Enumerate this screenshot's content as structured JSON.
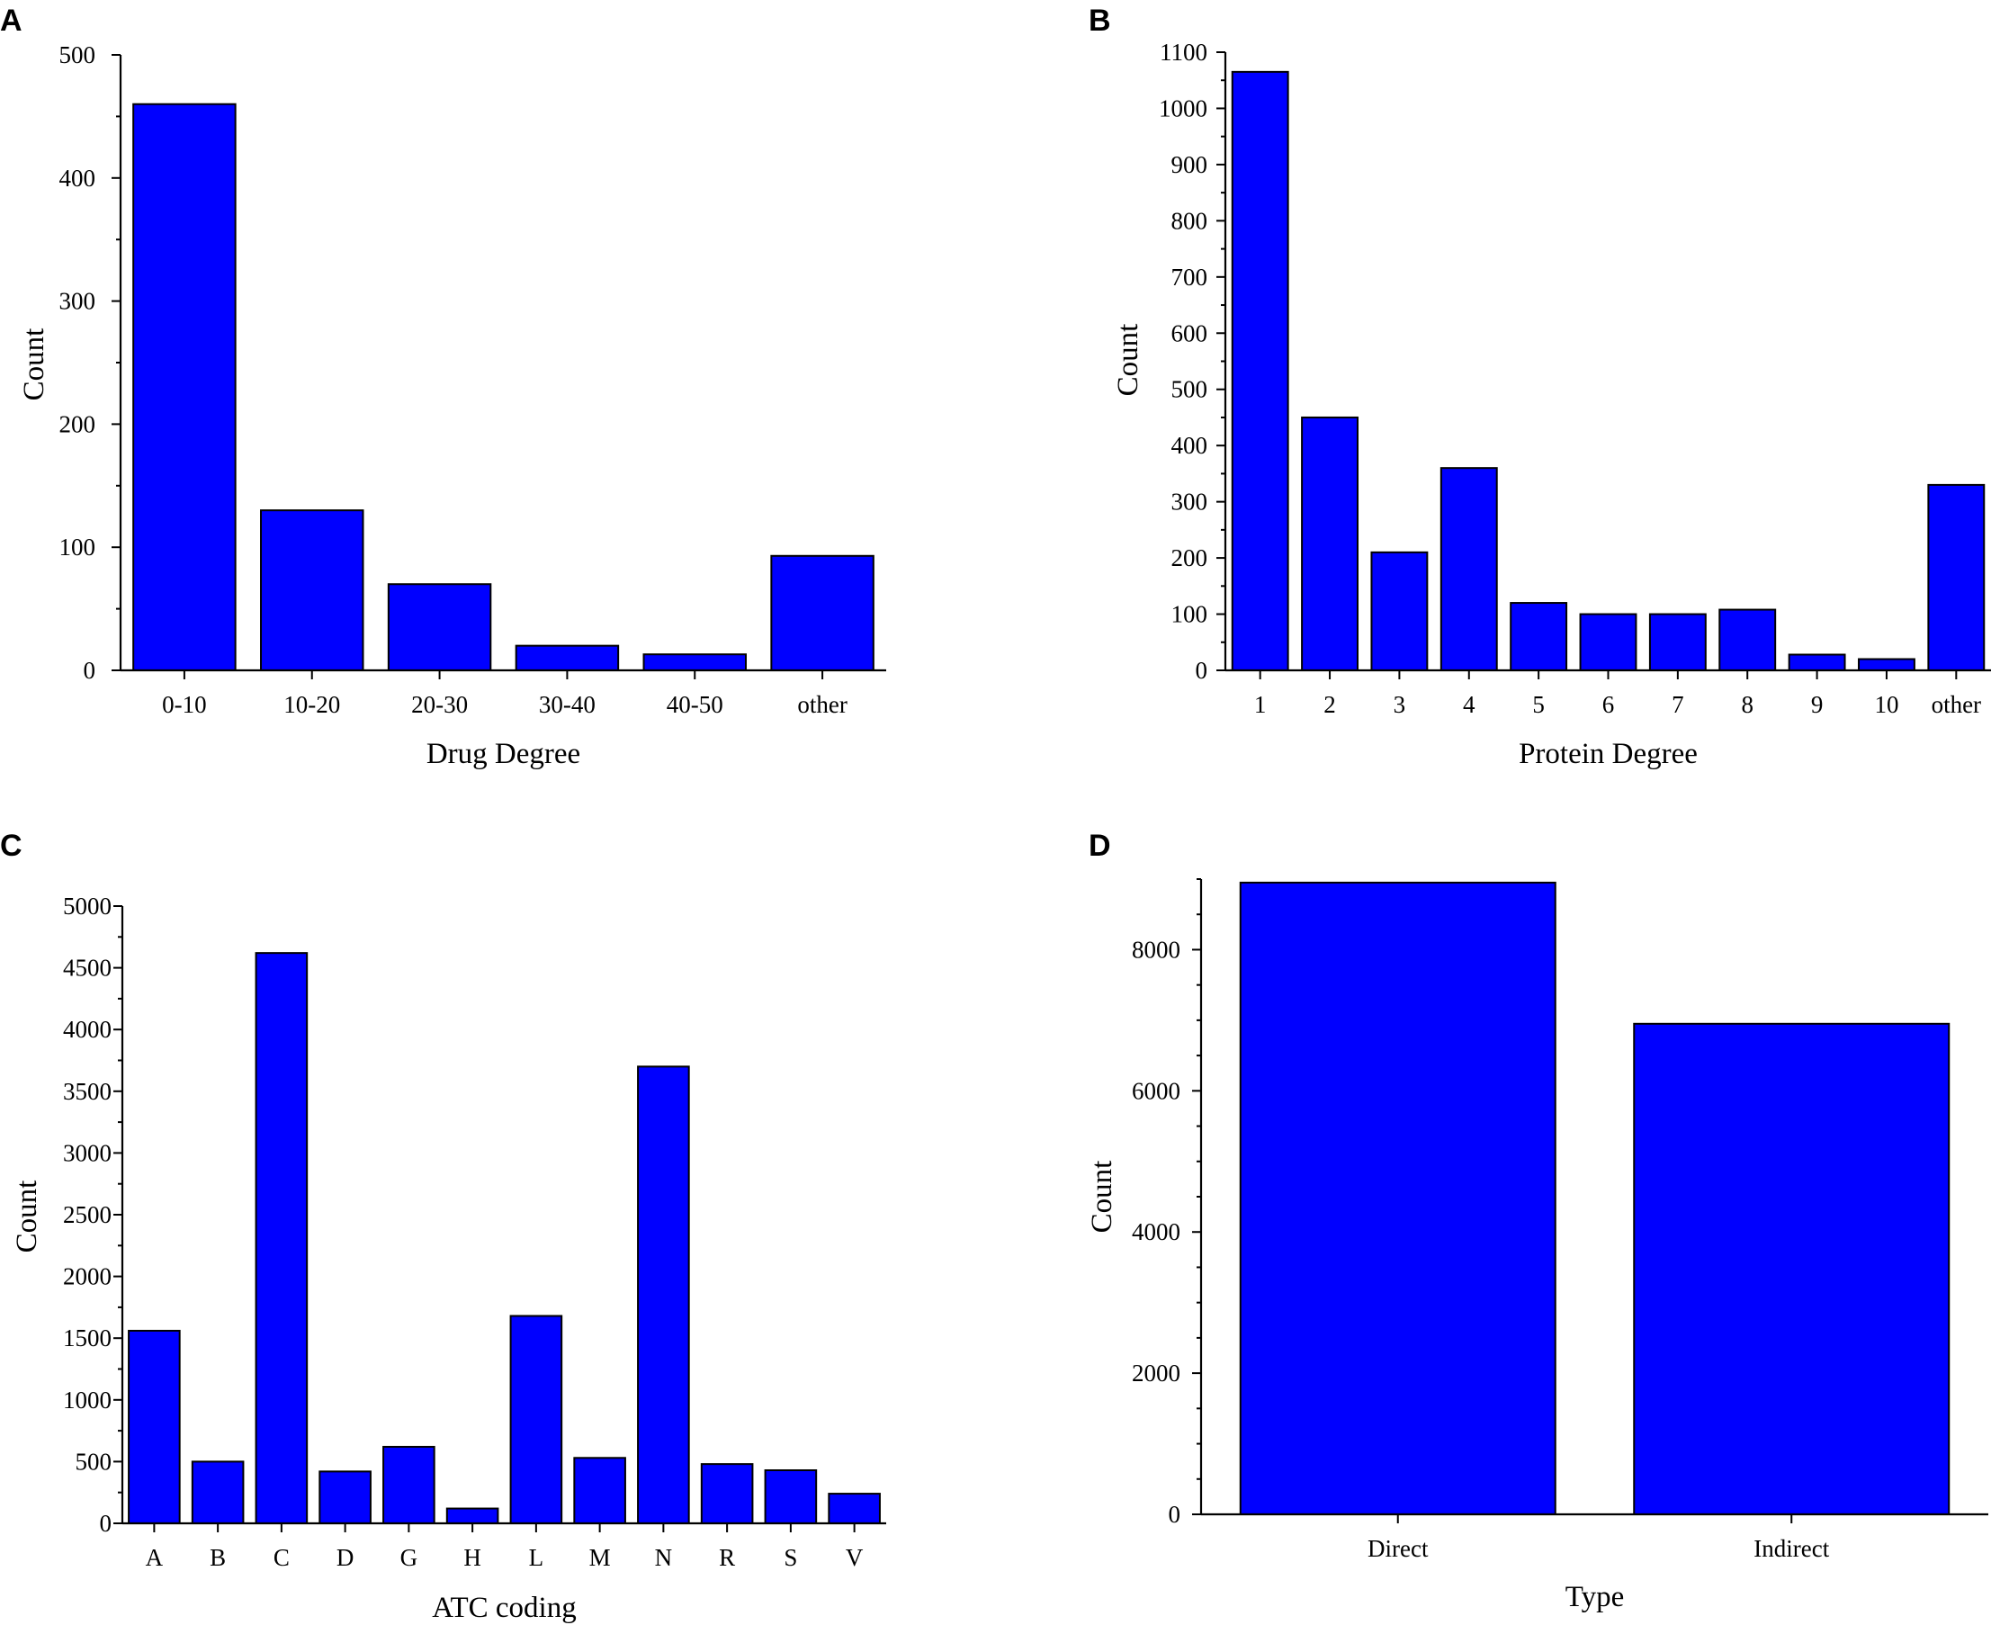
{
  "chart_data": [
    {
      "panel": "A",
      "type": "bar",
      "title": "",
      "xlabel": "Drug Degree",
      "ylabel": "Count",
      "categories": [
        "0-10",
        "10-20",
        "20-30",
        "30-40",
        "40-50",
        "other"
      ],
      "values": [
        460,
        130,
        70,
        20,
        13,
        93
      ],
      "ylim": [
        0,
        500
      ],
      "yticks": [
        0,
        100,
        200,
        300,
        400,
        500
      ],
      "yminor": 50,
      "color": "#0000ff"
    },
    {
      "panel": "B",
      "type": "bar",
      "title": "",
      "xlabel": "Protein Degree",
      "ylabel": "Count",
      "categories": [
        "1",
        "2",
        "3",
        "4",
        "5",
        "6",
        "7",
        "8",
        "9",
        "10",
        "other"
      ],
      "values": [
        1065,
        450,
        210,
        360,
        120,
        100,
        100,
        108,
        28,
        20,
        330
      ],
      "ylim": [
        0,
        1100
      ],
      "yticks": [
        0,
        100,
        200,
        300,
        400,
        500,
        600,
        700,
        800,
        900,
        1000,
        1100
      ],
      "yminor": 50,
      "color": "#0000ff"
    },
    {
      "panel": "C",
      "type": "bar",
      "title": "",
      "xlabel": "ATC coding",
      "ylabel": "Count",
      "categories": [
        "A",
        "B",
        "C",
        "D",
        "G",
        "H",
        "L",
        "M",
        "N",
        "R",
        "S",
        "V"
      ],
      "values": [
        1560,
        500,
        4620,
        420,
        620,
        120,
        1680,
        530,
        3700,
        480,
        430,
        240
      ],
      "ylim": [
        0,
        5000
      ],
      "yticks": [
        0,
        500,
        1000,
        1500,
        2000,
        2500,
        3000,
        3500,
        4000,
        4500,
        5000
      ],
      "yminor": 250,
      "color": "#0000ff"
    },
    {
      "panel": "D",
      "type": "bar",
      "title": "",
      "xlabel": "Type",
      "ylabel": "Count",
      "categories": [
        "Direct",
        "Indirect"
      ],
      "values": [
        8950,
        6950
      ],
      "ylim": [
        0,
        9000
      ],
      "yticks": [
        0,
        2000,
        4000,
        6000,
        8000
      ],
      "yminor": 500,
      "color": "#0000ff"
    }
  ]
}
